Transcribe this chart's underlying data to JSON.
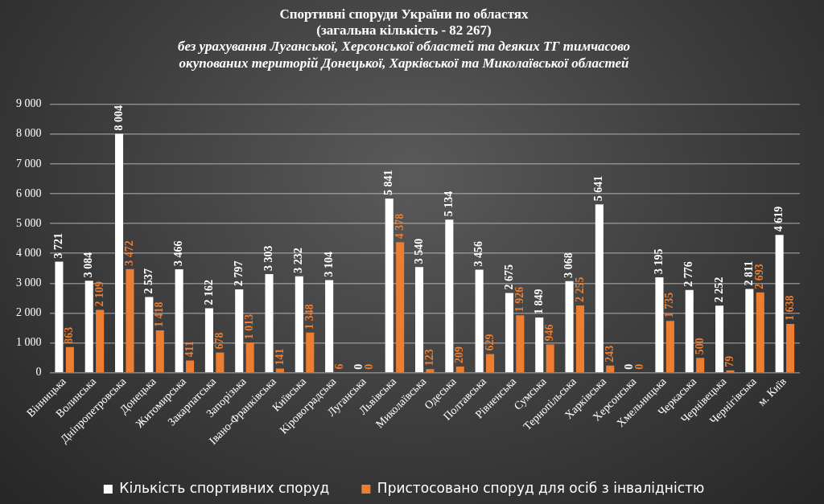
{
  "chart_data": {
    "type": "bar",
    "title": "Спортивні споруди України по областях\n(загальна кількість - 82 267)",
    "subtitle": "без урахування Луганської, Херсонської областей та деяких ТГ тимчасово\nокупованих територій Донецької, Харківської та Миколаївської областей",
    "categories": [
      "Вінницька",
      "Волинська",
      "Дніпропетровська",
      "Донецька",
      "Житомирська",
      "Закарпатська",
      "Запорізька",
      "Івано-Франківська",
      "Київська",
      "Кіровоградська",
      "Луганська",
      "Львівська",
      "Миколаївська",
      "Одеська",
      "Полтавська",
      "Рівненська",
      "Сумська",
      "Тернопільська",
      "Харківська",
      "Херсонська",
      "Хмельницька",
      "Черкаська",
      "Чернівецька",
      "Чернігівська",
      "м. Київ"
    ],
    "series": [
      {
        "name": "Кількість спортивних споруд",
        "color": "#ffffff",
        "values": [
          3721,
          3084,
          8004,
          2537,
          3466,
          2162,
          2797,
          3303,
          3232,
          3104,
          0,
          5841,
          3540,
          5134,
          3456,
          2675,
          1849,
          3068,
          5641,
          0,
          3195,
          2776,
          2252,
          2811,
          4619
        ],
        "value_labels": [
          "3 721",
          "3 084",
          "8 004",
          "2 537",
          "3 466",
          "2 162",
          "2 797",
          "3 303",
          "3 232",
          "3 104",
          "0",
          "5 841",
          "3 540",
          "5 134",
          "3 456",
          "2 675",
          "1 849",
          "3 068",
          "5 641",
          "0",
          "3 195",
          "2 776",
          "2 252",
          "2 811",
          "4 619"
        ]
      },
      {
        "name": "Пристосовано споруд для осіб з інвалідністю",
        "color": "#ed7d31",
        "values": [
          863,
          2109,
          3472,
          1418,
          411,
          678,
          1013,
          141,
          1348,
          6,
          0,
          4378,
          123,
          209,
          629,
          1926,
          946,
          2255,
          243,
          0,
          1735,
          500,
          79,
          2693,
          1638
        ],
        "value_labels": [
          "863",
          "2 109",
          "3 472",
          "1 418",
          "411",
          "678",
          "1 013",
          "141",
          "1 348",
          "6",
          "0",
          "4 378",
          "123",
          "209",
          "629",
          "1 926",
          "946",
          "2 255",
          "243",
          "0",
          "1 735",
          "500",
          "79",
          "2 693",
          "1 638"
        ]
      }
    ],
    "ylim": [
      0,
      9000
    ],
    "yticks": [
      {
        "value": 0,
        "label": "0"
      },
      {
        "value": 1000,
        "label": "1 000"
      },
      {
        "value": 2000,
        "label": "2 000"
      },
      {
        "value": 3000,
        "label": "3 000"
      },
      {
        "value": 4000,
        "label": "4 000"
      },
      {
        "value": 5000,
        "label": "5 000"
      },
      {
        "value": 6000,
        "label": "6 000"
      },
      {
        "value": 7000,
        "label": "7 000"
      },
      {
        "value": 8000,
        "label": "8 000"
      },
      {
        "value": 9000,
        "label": "9 000"
      }
    ],
    "grid": "y",
    "legend": "bottom"
  }
}
